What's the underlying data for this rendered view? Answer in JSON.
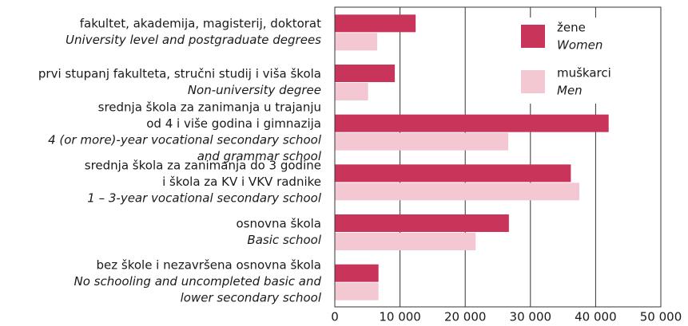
{
  "chart_data": {
    "type": "hbar",
    "categories": [
      [
        "fakultet, akademija, magisterij, doktorat"
      ],
      [
        "prvi stupanj fakulteta, stručni studij i viša škola"
      ],
      [
        "srednja škola za zanimanja u trajanju",
        "od 4 i više godina i gimnazija"
      ],
      [
        "srednja škola za zanimanja do 3 godine",
        "i škola za KV i VKV radnike"
      ],
      [
        "osnovna škola"
      ],
      [
        "bez škole i nezavršena osnovna škola"
      ]
    ],
    "categories_en": [
      [
        "University level and postgraduate degrees"
      ],
      [
        "Non-university degree"
      ],
      [
        "4 (or more)-year vocational secondary school",
        "and grammar school"
      ],
      [
        "1 – 3-year vocational secondary school"
      ],
      [
        "Basic school"
      ],
      [
        "No schooling and uncompleted basic and",
        "lower secondary school"
      ]
    ],
    "series": [
      {
        "name": "žene",
        "name_en": "Women",
        "color": "#c9355a",
        "values": [
          12400,
          9200,
          42000,
          36200,
          26700,
          6700
        ]
      },
      {
        "name": "muškarci",
        "name_en": "Men",
        "color": "#f3c8d3",
        "values": [
          6500,
          5100,
          26600,
          37500,
          21600,
          6700
        ]
      }
    ],
    "xlim": [
      0,
      50000
    ],
    "xticks": [
      0,
      {
        "value": 10000,
        "label": "10 000"
      },
      {
        "value": 20000,
        "label": "20 000"
      },
      {
        "value": 30000,
        "label": "30 000"
      },
      {
        "value": 40000,
        "label": "40 000"
      },
      {
        "value": 50000,
        "label": "50 000"
      }
    ],
    "grid": true
  }
}
